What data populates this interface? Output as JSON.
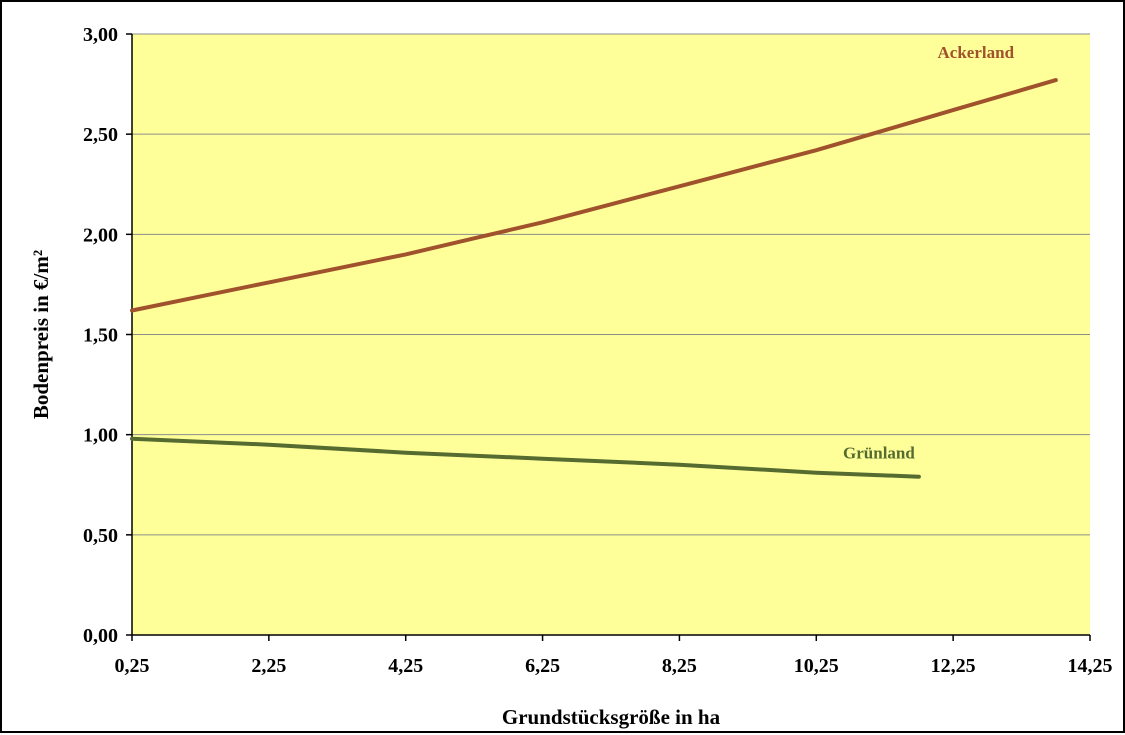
{
  "chart_data": {
    "type": "line",
    "xlabel": "Grundstücksgröße in ha",
    "ylabel": "Bodenpreis in €/m²",
    "xlim": [
      0.25,
      14.25
    ],
    "ylim": [
      0,
      3.0
    ],
    "x_ticks": [
      "0,25",
      "2,25",
      "4,25",
      "6,25",
      "8,25",
      "10,25",
      "12,25",
      "14,25"
    ],
    "y_ticks": [
      "0,00",
      "0,50",
      "1,00",
      "1,50",
      "2,00",
      "2,50",
      "3,00"
    ],
    "grid": true,
    "plot_background": "#FFFF99",
    "series": [
      {
        "name": "Ackerland",
        "color": "#A0522D",
        "x": [
          0.25,
          1.25,
          2.25,
          3.25,
          4.25,
          5.25,
          6.25,
          7.25,
          8.25,
          9.25,
          10.25,
          11.25,
          12.25,
          13.25,
          13.75
        ],
        "y": [
          1.62,
          1.69,
          1.76,
          1.83,
          1.9,
          1.98,
          2.06,
          2.15,
          2.24,
          2.33,
          2.42,
          2.52,
          2.62,
          2.72,
          2.77
        ]
      },
      {
        "name": "Grünland",
        "color": "#556B2F",
        "x": [
          0.25,
          2.25,
          4.25,
          6.25,
          8.25,
          10.25,
          11.75
        ],
        "y": [
          0.98,
          0.95,
          0.91,
          0.88,
          0.85,
          0.81,
          0.79
        ]
      }
    ]
  }
}
